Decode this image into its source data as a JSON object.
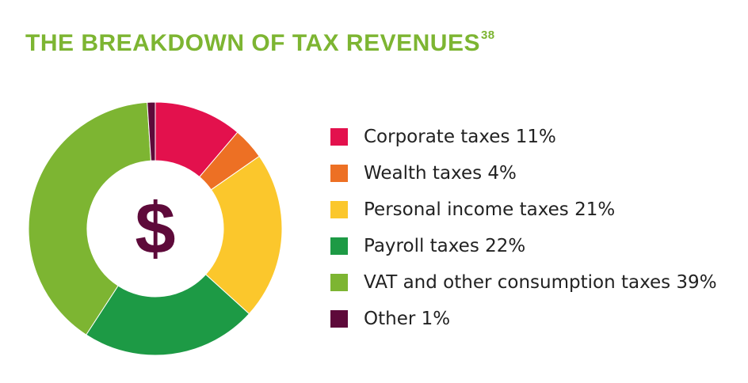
{
  "title": "THE BREAKDOWN OF TAX REVENUES",
  "title_footnote": "38",
  "title_color": "#7db532",
  "center_symbol": "$",
  "center_symbol_color": "#5e0a3a",
  "chart_data": {
    "type": "pie",
    "style": "donut",
    "title": "THE BREAKDOWN OF TAX REVENUES",
    "unit": "%",
    "categories": [
      "Corporate taxes",
      "Wealth taxes",
      "Personal income taxes",
      "Payroll taxes",
      "VAT and other consumption taxes",
      "Other"
    ],
    "values": [
      11,
      4,
      21,
      22,
      39,
      1
    ],
    "colors": [
      "#e3114d",
      "#ed7024",
      "#fbc72c",
      "#1d9a45",
      "#7db532",
      "#5e0a3a"
    ],
    "legend": [
      {
        "label": "Corporate taxes 11%",
        "color": "#e3114d"
      },
      {
        "label": "Wealth taxes 4%",
        "color": "#ed7024"
      },
      {
        "label": "Personal income taxes 21%",
        "color": "#fbc72c"
      },
      {
        "label": "Payroll taxes 22%",
        "color": "#1d9a45"
      },
      {
        "label": "VAT and other consumption taxes 39%",
        "color": "#7db532"
      },
      {
        "label": "Other 1%",
        "color": "#5e0a3a"
      }
    ],
    "legend_position": "right"
  }
}
